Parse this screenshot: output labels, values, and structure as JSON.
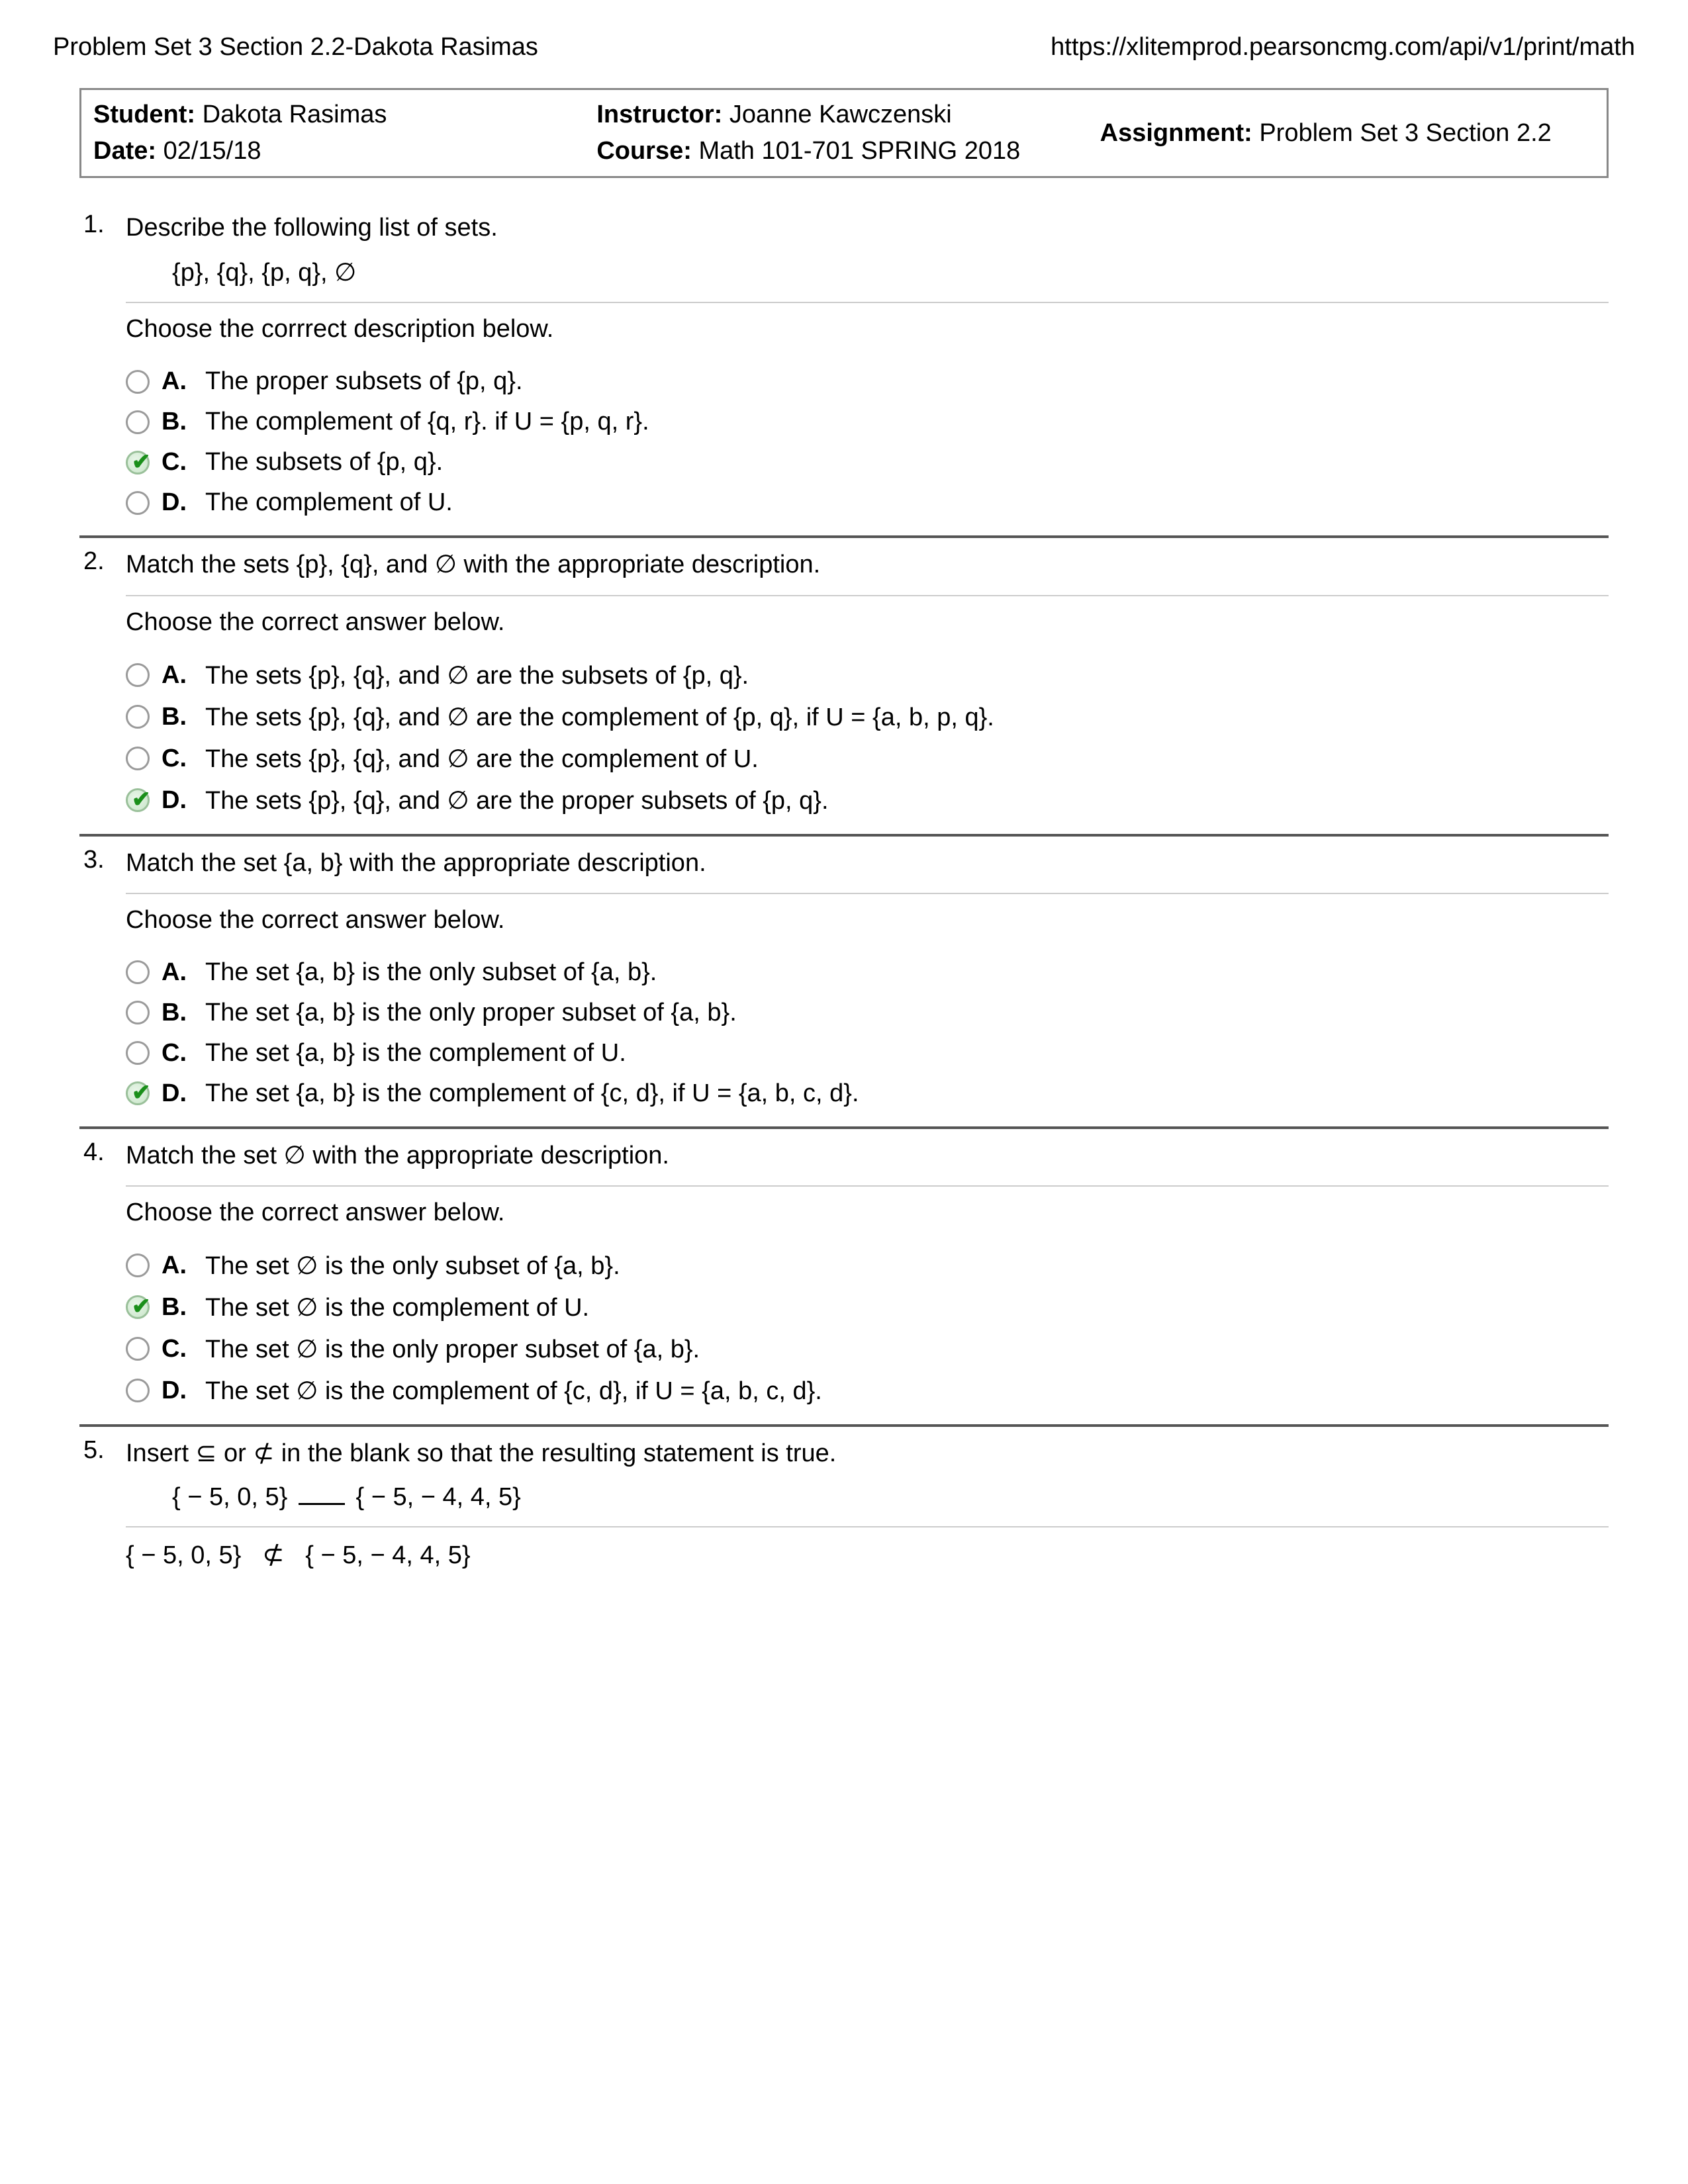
{
  "header": {
    "left": "Problem Set 3 Section 2.2-Dakota Rasimas",
    "right": "https://xlitemprod.pearsoncmg.com/api/v1/print/math"
  },
  "info": {
    "student_label": "Student:",
    "student": "Dakota Rasimas",
    "date_label": "Date:",
    "date": "02/15/18",
    "instructor_label": "Instructor:",
    "instructor": "Joanne Kawczenski",
    "course_label": "Course:",
    "course": "Math 101-701 SPRING 2018",
    "assignment_label": "Assignment:",
    "assignment": "Problem Set 3 Section 2.2"
  },
  "q1": {
    "num": "1.",
    "stem": "Describe the following list of sets.",
    "sets": "{p}, {q}, {p, q}, ∅",
    "prompt": "Choose the corrrect description below.",
    "opts": {
      "A": "The proper subsets of {p, q}.",
      "B": "The complement of {q, r}. if U = {p, q, r}.",
      "C": "The subsets of {p, q}.",
      "D": "The complement of U."
    },
    "selected": "C"
  },
  "q2": {
    "num": "2.",
    "stem": "Match the sets {p}, {q}, and ∅ with the appropriate description.",
    "prompt": "Choose the correct answer below.",
    "opts": {
      "A": "The sets {p}, {q}, and ∅ are the subsets of {p, q}.",
      "B": "The sets {p}, {q}, and ∅ are the complement of {p, q}, if U = {a, b, p, q}.",
      "C": "The sets {p}, {q}, and ∅ are the complement of U.",
      "D": "The sets {p}, {q}, and ∅ are the proper subsets of {p, q}."
    },
    "selected": "D"
  },
  "q3": {
    "num": "3.",
    "stem": "Match the set {a, b} with the appropriate description.",
    "prompt": "Choose the correct answer below.",
    "opts": {
      "A": "The set {a, b} is the only subset of {a, b}.",
      "B": "The set {a, b} is the only proper subset of {a, b}.",
      "C": "The set {a, b} is the complement of U.",
      "D": "The set {a, b} is the complement of {c, d}, if U = {a, b, c, d}."
    },
    "selected": "D"
  },
  "q4": {
    "num": "4.",
    "stem": "Match the set ∅ with the appropriate description.",
    "prompt": "Choose the correct answer below.",
    "opts": {
      "A": "The set ∅ is the only subset of {a, b}.",
      "B": "The set ∅ is the complement of U.",
      "C": "The set ∅ is the only proper subset of {a, b}.",
      "D": "The set ∅ is the complement of {c, d}, if U = {a, b, c, d}."
    },
    "selected": "B"
  },
  "q5": {
    "num": "5.",
    "stem": "Insert ⊆ or ⊄ in the blank so that the resulting statement is true.",
    "expr_left": "{ − 5, 0, 5}",
    "expr_right": "{ − 5,  − 4, 4, 5}",
    "answer_left": "{ − 5, 0, 5}",
    "answer_sym": "⊄",
    "answer_right": "{ − 5,  − 4, 4, 5}"
  },
  "labels": {
    "A": "A.",
    "B": "B.",
    "C": "C.",
    "D": "D."
  }
}
